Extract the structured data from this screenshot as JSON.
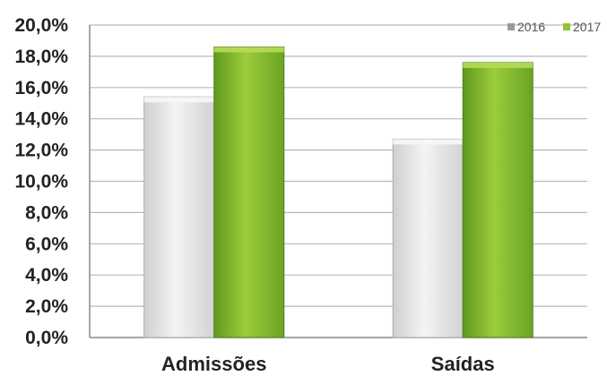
{
  "chart_data": {
    "type": "bar",
    "title": "",
    "xlabel": "",
    "ylabel": "",
    "categories": [
      "Admissões",
      "Saídas"
    ],
    "series": [
      {
        "name": "2016",
        "values": [
          15.4,
          12.7
        ],
        "color": "#e6e6e6"
      },
      {
        "name": "2017",
        "values": [
          18.6,
          17.6
        ],
        "color": "#8fc435"
      }
    ],
    "ylim": [
      0,
      20
    ],
    "yticks": [
      0,
      2,
      4,
      6,
      8,
      10,
      12,
      14,
      16,
      18,
      20
    ],
    "ytick_labels": [
      "0,0%",
      "2,0%",
      "4,0%",
      "6,0%",
      "8,0%",
      "10,0%",
      "12,0%",
      "14,0%",
      "16,0%",
      "18,0%",
      "20,0%"
    ],
    "grid": true,
    "legend_position": "top-right"
  }
}
